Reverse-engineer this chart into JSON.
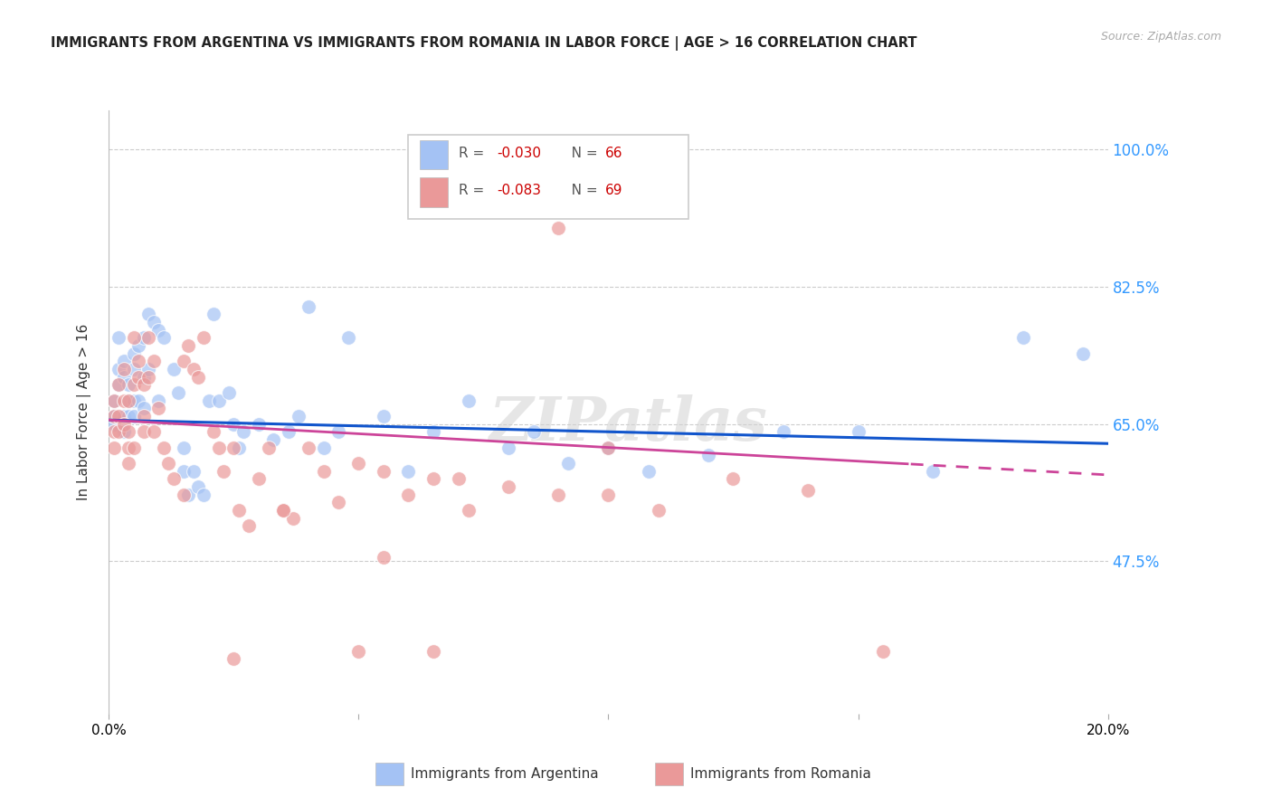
{
  "title": "IMMIGRANTS FROM ARGENTINA VS IMMIGRANTS FROM ROMANIA IN LABOR FORCE | AGE > 16 CORRELATION CHART",
  "source": "Source: ZipAtlas.com",
  "ylabel": "In Labor Force | Age > 16",
  "ytick_labels": [
    "100.0%",
    "82.5%",
    "65.0%",
    "47.5%"
  ],
  "ytick_values": [
    1.0,
    0.825,
    0.65,
    0.475
  ],
  "xmin": 0.0,
  "xmax": 0.2,
  "ymin": 0.28,
  "ymax": 1.05,
  "R_argentina": -0.03,
  "R_romania": -0.083,
  "N_argentina": 66,
  "N_romania": 69,
  "color_argentina": "#a4c2f4",
  "color_romania": "#ea9999",
  "color_line_argentina": "#1155cc",
  "color_line_romania": "#cc4499",
  "watermark": "ZIPatlas",
  "trendline_argentina_slope": -0.15,
  "trendline_argentina_intercept": 0.655,
  "trendline_romania_slope": -0.35,
  "trendline_romania_intercept": 0.655,
  "trendline_dashed_start": 0.16,
  "argentina_x": [
    0.001,
    0.001,
    0.001,
    0.002,
    0.002,
    0.002,
    0.003,
    0.003,
    0.003,
    0.003,
    0.004,
    0.004,
    0.004,
    0.005,
    0.005,
    0.005,
    0.005,
    0.006,
    0.006,
    0.007,
    0.007,
    0.007,
    0.008,
    0.008,
    0.009,
    0.01,
    0.01,
    0.011,
    0.013,
    0.014,
    0.015,
    0.015,
    0.016,
    0.017,
    0.018,
    0.019,
    0.02,
    0.021,
    0.022,
    0.024,
    0.025,
    0.026,
    0.027,
    0.03,
    0.033,
    0.036,
    0.038,
    0.04,
    0.043,
    0.046,
    0.048,
    0.055,
    0.06,
    0.065,
    0.072,
    0.08,
    0.085,
    0.092,
    0.1,
    0.108,
    0.12,
    0.135,
    0.15,
    0.165,
    0.183,
    0.195
  ],
  "argentina_y": [
    0.66,
    0.68,
    0.65,
    0.72,
    0.7,
    0.76,
    0.73,
    0.66,
    0.64,
    0.71,
    0.68,
    0.66,
    0.7,
    0.74,
    0.66,
    0.68,
    0.72,
    0.75,
    0.68,
    0.76,
    0.71,
    0.67,
    0.79,
    0.72,
    0.78,
    0.77,
    0.68,
    0.76,
    0.72,
    0.69,
    0.59,
    0.62,
    0.56,
    0.59,
    0.57,
    0.56,
    0.68,
    0.79,
    0.68,
    0.69,
    0.65,
    0.62,
    0.64,
    0.65,
    0.63,
    0.64,
    0.66,
    0.8,
    0.62,
    0.64,
    0.76,
    0.66,
    0.59,
    0.64,
    0.68,
    0.62,
    0.64,
    0.6,
    0.62,
    0.59,
    0.61,
    0.64,
    0.64,
    0.59,
    0.76,
    0.74
  ],
  "romania_x": [
    0.001,
    0.001,
    0.001,
    0.001,
    0.002,
    0.002,
    0.002,
    0.003,
    0.003,
    0.003,
    0.004,
    0.004,
    0.004,
    0.004,
    0.005,
    0.005,
    0.005,
    0.006,
    0.006,
    0.007,
    0.007,
    0.007,
    0.008,
    0.008,
    0.009,
    0.009,
    0.01,
    0.011,
    0.012,
    0.013,
    0.015,
    0.015,
    0.016,
    0.017,
    0.018,
    0.019,
    0.021,
    0.022,
    0.023,
    0.025,
    0.026,
    0.028,
    0.03,
    0.032,
    0.035,
    0.037,
    0.04,
    0.043,
    0.046,
    0.05,
    0.055,
    0.06,
    0.065,
    0.072,
    0.08,
    0.09,
    0.1,
    0.11,
    0.125,
    0.14,
    0.155,
    0.09,
    0.065,
    0.035,
    0.055,
    0.025,
    0.1,
    0.07,
    0.05
  ],
  "romania_y": [
    0.66,
    0.64,
    0.68,
    0.62,
    0.66,
    0.7,
    0.64,
    0.65,
    0.68,
    0.72,
    0.64,
    0.62,
    0.6,
    0.68,
    0.7,
    0.76,
    0.62,
    0.71,
    0.73,
    0.66,
    0.64,
    0.7,
    0.76,
    0.71,
    0.73,
    0.64,
    0.67,
    0.62,
    0.6,
    0.58,
    0.56,
    0.73,
    0.75,
    0.72,
    0.71,
    0.76,
    0.64,
    0.62,
    0.59,
    0.62,
    0.54,
    0.52,
    0.58,
    0.62,
    0.54,
    0.53,
    0.62,
    0.59,
    0.55,
    0.6,
    0.59,
    0.56,
    0.58,
    0.54,
    0.57,
    0.56,
    0.56,
    0.54,
    0.58,
    0.565,
    0.36,
    0.9,
    0.36,
    0.54,
    0.48,
    0.35,
    0.62,
    0.58,
    0.36
  ]
}
